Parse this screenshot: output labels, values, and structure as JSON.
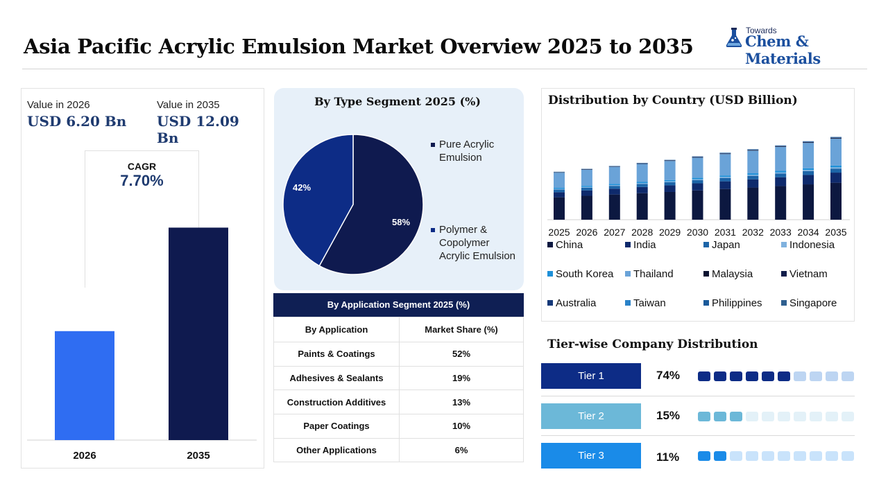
{
  "header": {
    "title": "Asia Pacific Acrylic Emulsion Market Overview 2025 to 2035",
    "logo_top": "Towards",
    "logo_main": "Chem & Materials"
  },
  "colors": {
    "navy": "#0f1a4f",
    "blue": "#2f6df2",
    "pie_blue": "#0d2c86",
    "title_blue": "#1f3b70",
    "tier1": "#0d2c86",
    "tier2": "#6cb8d8",
    "tier3": "#1a8be8"
  },
  "values_panel": {
    "label_2026": "Value in 2026",
    "value_2026": "USD 6.20 Bn",
    "label_2035": "Value in 2035",
    "value_2035": "USD 12.09 Bn",
    "cagr_label": "CAGR",
    "cagr_value": "7.70%"
  },
  "type_segment": {
    "title": "By Type Segment 2025 (%)"
  },
  "application_segment": {
    "title": "By Application  Segment 2025 (%)",
    "headers": [
      "By Application",
      "Market Share (%)"
    ],
    "rows": [
      [
        "Paints & Coatings",
        "52%"
      ],
      [
        "Adhesives & Sealants",
        "19%"
      ],
      [
        "Construction Additives",
        "13%"
      ],
      [
        "Paper Coatings",
        "10%"
      ],
      [
        "Other Applications",
        "6%"
      ]
    ]
  },
  "country": {
    "title": "Distribution by Country (USD Billion)"
  },
  "tiers": {
    "title": "Tier-wise Company Distribution",
    "items": [
      {
        "label": "Tier 1",
        "pct": "74%",
        "filled": 6,
        "total": 10
      },
      {
        "label": "Tier 2",
        "pct": "15%",
        "filled": 3,
        "total": 10
      },
      {
        "label": "Tier 3",
        "pct": "11%",
        "filled": 2,
        "total": 10
      }
    ]
  },
  "chart_data": [
    {
      "type": "bar",
      "categories": [
        "2026",
        "2035"
      ],
      "values": [
        6.2,
        12.09
      ],
      "colors": [
        "#2f6df2",
        "#0f1a4f"
      ],
      "ylim": [
        0,
        14
      ]
    },
    {
      "type": "pie",
      "title": "By Type Segment 2025 (%)",
      "labels": [
        "Pure Acrylic Emulsion",
        "Polymer & Copolymer Acrylic Emulsion"
      ],
      "values": [
        58,
        42
      ],
      "colors": [
        "#0f1a4f",
        "#0d2c86"
      ],
      "data_labels": [
        "58%",
        "42%"
      ],
      "legend": "right"
    },
    {
      "type": "bar",
      "stacked": true,
      "title": "Distribution by Country (USD Billion)",
      "categories": [
        "2025",
        "2026",
        "2027",
        "2028",
        "2029",
        "2030",
        "2031",
        "2032",
        "2033",
        "2034",
        "2035"
      ],
      "legend": "bottom",
      "ylim": [
        0,
        12
      ],
      "series": [
        {
          "name": "China",
          "color": "#0c1840",
          "values": [
            2.57,
            2.74,
            2.89,
            3.04,
            3.18,
            3.35,
            3.52,
            3.69,
            3.86,
            4.05,
            4.24
          ]
        },
        {
          "name": "India",
          "color": "#0e2a6c",
          "values": [
            0.58,
            0.62,
            0.66,
            0.71,
            0.76,
            0.82,
            0.88,
            0.94,
            1.01,
            1.08,
            1.16
          ]
        },
        {
          "name": "Japan",
          "color": "#1c65a8",
          "values": [
            0.3,
            0.31,
            0.33,
            0.34,
            0.36,
            0.37,
            0.39,
            0.4,
            0.42,
            0.44,
            0.46
          ]
        },
        {
          "name": "Indonesia",
          "color": "#7fb1de",
          "values": [
            0.08,
            0.08,
            0.09,
            0.1,
            0.1,
            0.11,
            0.12,
            0.12,
            0.13,
            0.14,
            0.15
          ]
        },
        {
          "name": "South Korea",
          "color": "#1e90d8",
          "values": [
            0.12,
            0.13,
            0.13,
            0.14,
            0.15,
            0.15,
            0.16,
            0.17,
            0.18,
            0.19,
            0.2
          ]
        },
        {
          "name": "Thailand",
          "color": "#6aa3d8",
          "values": [
            1.74,
            1.85,
            1.96,
            2.07,
            2.19,
            2.32,
            2.46,
            2.6,
            2.75,
            2.91,
            3.08
          ]
        },
        {
          "name": "Malaysia",
          "color": "#0a1230",
          "values": [
            0.03,
            0.03,
            0.03,
            0.04,
            0.04,
            0.04,
            0.04,
            0.05,
            0.05,
            0.05,
            0.06
          ]
        },
        {
          "name": "Vietnam",
          "color": "#101c4a",
          "values": [
            0.02,
            0.02,
            0.02,
            0.02,
            0.02,
            0.03,
            0.03,
            0.03,
            0.03,
            0.03,
            0.04
          ]
        },
        {
          "name": "Australia",
          "color": "#143878",
          "values": [
            0.02,
            0.02,
            0.02,
            0.02,
            0.03,
            0.03,
            0.03,
            0.03,
            0.03,
            0.04,
            0.04
          ]
        },
        {
          "name": "Taiwan",
          "color": "#2a82c8",
          "values": [
            0.02,
            0.02,
            0.02,
            0.02,
            0.02,
            0.02,
            0.03,
            0.03,
            0.03,
            0.03,
            0.03
          ]
        },
        {
          "name": "Philippines",
          "color": "#1a5a9a",
          "values": [
            0.01,
            0.01,
            0.01,
            0.01,
            0.01,
            0.02,
            0.02,
            0.02,
            0.02,
            0.02,
            0.02
          ]
        },
        {
          "name": "Singapore",
          "color": "#2f5f8f",
          "values": [
            0.01,
            0.01,
            0.01,
            0.01,
            0.01,
            0.01,
            0.01,
            0.01,
            0.01,
            0.02,
            0.02
          ]
        }
      ]
    }
  ]
}
